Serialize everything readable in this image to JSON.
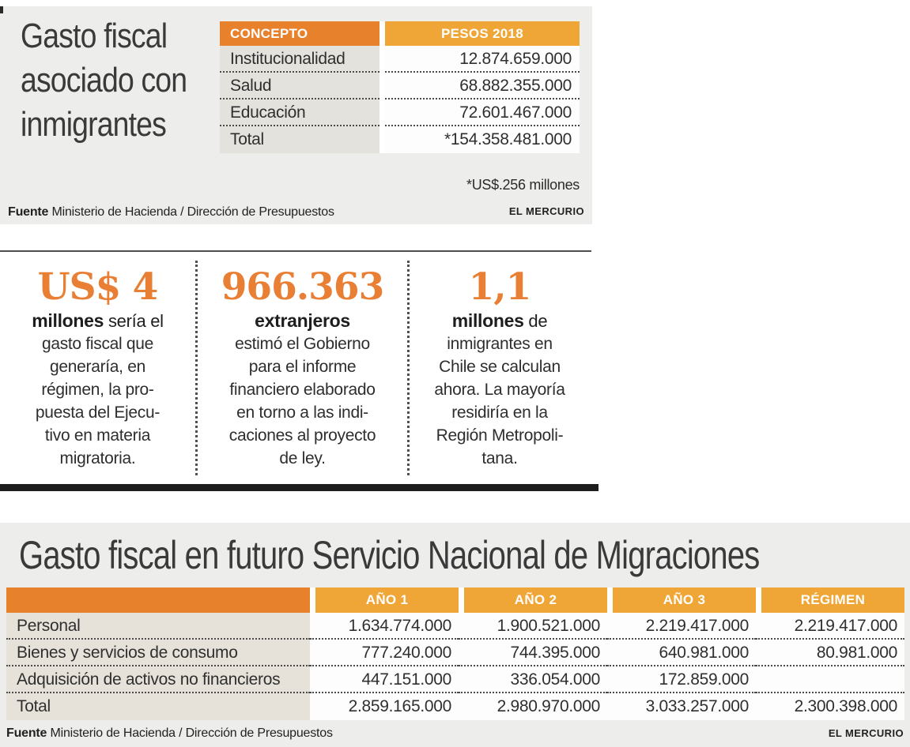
{
  "panel1": {
    "title_lines": [
      "Gasto fiscal",
      "asociado con",
      "inmigrantes"
    ],
    "table": {
      "col1_header": "CONCEPTO",
      "col2_header": "PESOS 2018",
      "rows": [
        {
          "label": "Institucionalidad",
          "value": "12.874.659.000"
        },
        {
          "label": "Salud",
          "value": "68.882.355.000"
        },
        {
          "label": "Educación",
          "value": "72.601.467.000"
        },
        {
          "label": "Total",
          "value": "*154.358.481.000"
        }
      ]
    },
    "footnote": "*US$.256 millones",
    "source_bold": "Fuente",
    "source_rest": " Ministerio de Hacienda / Dirección de Presupuestos",
    "credit": "EL MERCURIO"
  },
  "stats": [
    {
      "number": "US$ 4",
      "strong": "millones",
      "strong_rest": " sería el",
      "lines": [
        "gasto fiscal que",
        "generaría, en",
        "régimen, la pro-",
        "puesta del Ejecu-",
        "tivo en materia",
        "migratoria."
      ]
    },
    {
      "number": "966.363",
      "strong": "extranjeros",
      "strong_rest": "",
      "lines": [
        "estimó el Gobierno",
        "para el informe",
        "financiero elaborado",
        "en torno a las indi-",
        "caciones al proyecto",
        "de ley."
      ]
    },
    {
      "number": "1,1",
      "strong": "millones",
      "strong_rest": " de",
      "lines": [
        "inmigrantes en",
        "Chile se calculan",
        "ahora. La mayoría",
        "residiría en la",
        "Región Metropoli-",
        "tana."
      ]
    }
  ],
  "panel2": {
    "title": "Gasto fiscal en futuro Servicio Nacional de Migraciones",
    "table": {
      "col_headers": [
        "AÑO 1",
        "AÑO 2",
        "AÑO 3",
        "RÉGIMEN"
      ],
      "rows": [
        {
          "label": "Personal",
          "values": [
            "1.634.774.000",
            "1.900.521.000",
            "2.219.417.000",
            "2.219.417.000"
          ]
        },
        {
          "label": "Bienes y servicios de consumo",
          "values": [
            "777.240.000",
            "744.395.000",
            "640.981.000",
            "80.981.000"
          ]
        },
        {
          "label": "Adquisición de activos no financieros",
          "values": [
            "447.151.000",
            "336.054.000",
            "172.859.000",
            ""
          ]
        },
        {
          "label": "Total",
          "values": [
            "2.859.165.000",
            "2.980.970.000",
            "3.033.257.000",
            "2.300.398.000"
          ]
        }
      ]
    },
    "source_bold": "Fuente",
    "source_rest": " Ministerio de Hacienda / Dirección de Presupuestos",
    "credit": "EL MERCURIO"
  },
  "colors": {
    "panel_bg": "#ededeb",
    "header_dark_orange": "#e8812b",
    "header_light_orange": "#efa636",
    "stat_number_orange": "#e87f35",
    "label_cell_beige": "#e6e2d9",
    "value_cell_white": "#fdfdfd",
    "text_dark": "#303030"
  },
  "chart_data": [
    {
      "type": "table",
      "title": "Gasto fiscal asociado con inmigrantes",
      "columns": [
        "CONCEPTO",
        "PESOS 2018"
      ],
      "rows": [
        [
          "Institucionalidad",
          "12.874.659.000"
        ],
        [
          "Salud",
          "68.882.355.000"
        ],
        [
          "Educación",
          "72.601.467.000"
        ],
        [
          "Total",
          "*154.358.481.000"
        ]
      ],
      "footnote": "*US$.256 millones",
      "source": "Ministerio de Hacienda / Dirección de Presupuestos",
      "credit": "EL MERCURIO"
    },
    {
      "type": "table",
      "title": "Gasto fiscal en futuro Servicio Nacional de Migraciones",
      "columns": [
        "",
        "AÑO 1",
        "AÑO 2",
        "AÑO 3",
        "RÉGIMEN"
      ],
      "rows": [
        [
          "Personal",
          "1.634.774.000",
          "1.900.521.000",
          "2.219.417.000",
          "2.219.417.000"
        ],
        [
          "Bienes y servicios de consumo",
          "777.240.000",
          "744.395.000",
          "640.981.000",
          "80.981.000"
        ],
        [
          "Adquisición de activos no financieros",
          "447.151.000",
          "336.054.000",
          "172.859.000",
          ""
        ],
        [
          "Total",
          "2.859.165.000",
          "2.980.970.000",
          "3.033.257.000",
          "2.300.398.000"
        ]
      ],
      "source": "Ministerio de Hacienda / Dirección de Presupuestos",
      "credit": "EL MERCURIO"
    }
  ]
}
